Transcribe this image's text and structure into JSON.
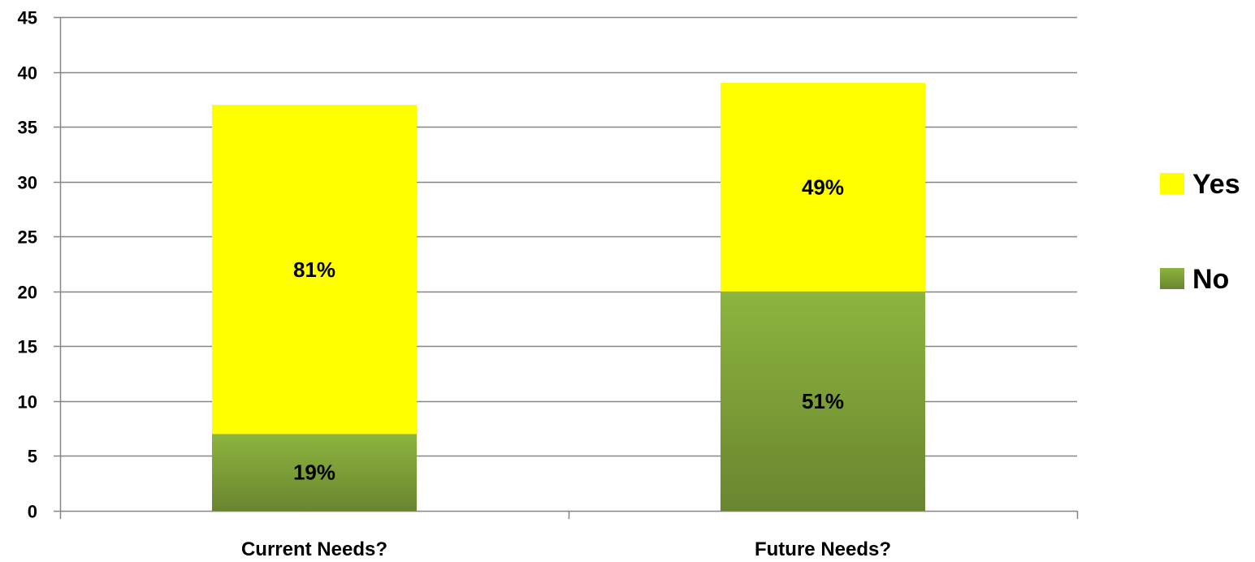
{
  "chart_data": {
    "type": "bar",
    "stacked": true,
    "categories": [
      "Current Needs?",
      "Future Needs?"
    ],
    "series": [
      {
        "name": "No",
        "values": [
          7,
          20
        ],
        "labels": [
          "19%",
          "51%"
        ],
        "color": "#76933C",
        "color_light": "#8DB43E",
        "color_dark": "#6A8530"
      },
      {
        "name": "Yes",
        "values": [
          30,
          19
        ],
        "labels": [
          "81%",
          "49%"
        ],
        "color": "#FFFF00"
      }
    ],
    "ylim": [
      0,
      45
    ],
    "yticks": [
      0,
      5,
      10,
      15,
      20,
      25,
      30,
      35,
      40,
      45
    ],
    "title": "",
    "xlabel": "",
    "ylabel": "",
    "grid": true,
    "gridline_color": "#868686",
    "legend": {
      "placement": "right",
      "order": [
        "Yes",
        "No"
      ]
    }
  }
}
